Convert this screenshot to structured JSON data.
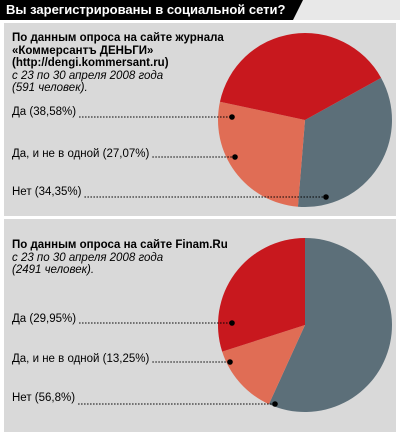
{
  "title": "Вы зарегистрированы в социальной сети?",
  "colors": {
    "yes": "#c8181e",
    "yes_no_one": "#e06d55",
    "no": "#5c6f79",
    "panel_bg": "#d9d9d9",
    "title_bg": "#000000"
  },
  "panels": [
    {
      "header": "По данным опроса на сайте журнала\n«Коммерсантъ ДЕНЬГИ»\n(http://dengi.kommersant.ru)",
      "subheader": "с 23 по 30 апреля 2008 года\n(591 человек)."
    },
    {
      "header": "По данным опроса на сайте Finam.Ru",
      "subheader": "с 23 по 30 апреля 2008 года\n(2491 человек)."
    }
  ],
  "chart_data": [
    {
      "type": "pie",
      "title": "",
      "slices": [
        {
          "label": "Да",
          "value": 38.58,
          "text": "Да (38,58%)",
          "color": "#c8181e"
        },
        {
          "label": "Да, и не в одной",
          "value": 27.07,
          "text": "Да, и не в одной (27,07%)",
          "color": "#e06d55"
        },
        {
          "label": "Нет",
          "value": 34.35,
          "text": "Нет (34,35%)",
          "color": "#5c6f79"
        }
      ]
    },
    {
      "type": "pie",
      "title": "",
      "slices": [
        {
          "label": "Да",
          "value": 29.95,
          "text": "Да (29,95%)",
          "color": "#c8181e"
        },
        {
          "label": "Да, и не в одной",
          "value": 13.25,
          "text": "Да, и не в одной (13,25%)",
          "color": "#e06d55"
        },
        {
          "label": "Нет",
          "value": 56.8,
          "text": "Нет (56,8%)",
          "color": "#5c6f79"
        }
      ]
    }
  ]
}
